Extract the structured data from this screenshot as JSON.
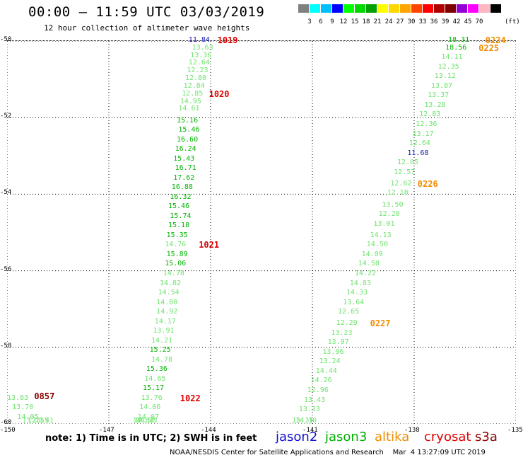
{
  "header": {
    "title": "00:00 – 11:59 UTC 03/03/2019",
    "subtitle": "12 hour collection of altimeter wave heights"
  },
  "colorbar": {
    "colors": [
      "#808080",
      "#00ffff",
      "#00bfff",
      "#0000ff",
      "#00ff00",
      "#00d800",
      "#00a000",
      "#ffff00",
      "#ffd700",
      "#ffa500",
      "#ff4500",
      "#ff0000",
      "#b00000",
      "#800000",
      "#9400d3",
      "#ff00ff",
      "#ffb6c1",
      "#000000"
    ],
    "labels": [
      "3",
      "6",
      "9",
      "12",
      "15",
      "18",
      "21",
      "24",
      "27",
      "30",
      "33",
      "36",
      "39",
      "42",
      "45",
      "70"
    ],
    "unit": "(ft)"
  },
  "axes": {
    "lat_labels": [
      "-50",
      "-52",
      "-54",
      "-56",
      "-58",
      "-60"
    ],
    "lon_labels": [
      "-150",
      "-147",
      "-144",
      "-141",
      "-138",
      "-135"
    ]
  },
  "chart_data": {
    "type": "scatter",
    "xlim": [
      -150,
      -135
    ],
    "ylim": [
      -60,
      -50
    ],
    "measurements": [
      {
        "x": -144.65,
        "y": -50.0,
        "text": "11.84",
        "color": "#1a1ab0"
      },
      {
        "x": -144.55,
        "y": -50.2,
        "text": "13.63",
        "color": "#6fe36f"
      },
      {
        "x": -144.6,
        "y": -50.4,
        "text": "13.36",
        "color": "#6fe36f"
      },
      {
        "x": -144.65,
        "y": -50.6,
        "text": "12.64",
        "color": "#6fe36f"
      },
      {
        "x": -144.7,
        "y": -50.8,
        "text": "12.23",
        "color": "#6fe36f"
      },
      {
        "x": -144.75,
        "y": -51.0,
        "text": "12.80",
        "color": "#6fe36f"
      },
      {
        "x": -144.8,
        "y": -51.2,
        "text": "12.84",
        "color": "#6fe36f"
      },
      {
        "x": -144.85,
        "y": -51.4,
        "text": "12.85",
        "color": "#6fe36f"
      },
      {
        "x": -144.9,
        "y": -51.6,
        "text": "14.95",
        "color": "#6fe36f"
      },
      {
        "x": -144.95,
        "y": -51.8,
        "text": "14.61",
        "color": "#6fe36f"
      },
      {
        "x": -145.0,
        "y": -52.1,
        "text": "15.16",
        "color": "#00b400"
      },
      {
        "x": -144.95,
        "y": -52.35,
        "text": "15.46",
        "color": "#00b400"
      },
      {
        "x": -145.0,
        "y": -52.6,
        "text": "16.60",
        "color": "#00b400"
      },
      {
        "x": -145.05,
        "y": -52.85,
        "text": "16.24",
        "color": "#00b400"
      },
      {
        "x": -145.1,
        "y": -53.1,
        "text": "15.43",
        "color": "#00b400"
      },
      {
        "x": -145.05,
        "y": -53.35,
        "text": "16.71",
        "color": "#00b400"
      },
      {
        "x": -145.1,
        "y": -53.6,
        "text": "17.62",
        "color": "#00b400"
      },
      {
        "x": -145.15,
        "y": -53.85,
        "text": "16.88",
        "color": "#00b400"
      },
      {
        "x": -145.2,
        "y": -54.1,
        "text": "16.32",
        "color": "#00b400"
      },
      {
        "x": -145.25,
        "y": -54.35,
        "text": "15.46",
        "color": "#00b400"
      },
      {
        "x": -145.2,
        "y": -54.6,
        "text": "15.74",
        "color": "#00b400"
      },
      {
        "x": -145.25,
        "y": -54.85,
        "text": "15.18",
        "color": "#00b400"
      },
      {
        "x": -145.3,
        "y": -55.1,
        "text": "15.35",
        "color": "#00b400"
      },
      {
        "x": -145.35,
        "y": -55.35,
        "text": "14.76",
        "color": "#6fe36f"
      },
      {
        "x": -145.3,
        "y": -55.6,
        "text": "15.89",
        "color": "#00b400"
      },
      {
        "x": -145.35,
        "y": -55.85,
        "text": "15.06",
        "color": "#00b400"
      },
      {
        "x": -145.4,
        "y": -56.1,
        "text": "14.78",
        "color": "#6fe36f"
      },
      {
        "x": -145.5,
        "y": -56.35,
        "text": "14.82",
        "color": "#6fe36f"
      },
      {
        "x": -145.55,
        "y": -56.6,
        "text": "14.54",
        "color": "#6fe36f"
      },
      {
        "x": -145.6,
        "y": -56.85,
        "text": "14.00",
        "color": "#6fe36f"
      },
      {
        "x": -145.6,
        "y": -57.1,
        "text": "14.92",
        "color": "#6fe36f"
      },
      {
        "x": -145.65,
        "y": -57.35,
        "text": "14.17",
        "color": "#6fe36f"
      },
      {
        "x": -145.7,
        "y": -57.6,
        "text": "13.91",
        "color": "#6fe36f"
      },
      {
        "x": -145.75,
        "y": -57.85,
        "text": "14.21",
        "color": "#6fe36f"
      },
      {
        "x": -145.8,
        "y": -58.1,
        "text": "15.25",
        "color": "#00b400"
      },
      {
        "x": -145.75,
        "y": -58.35,
        "text": "14.78",
        "color": "#6fe36f"
      },
      {
        "x": -145.9,
        "y": -58.6,
        "text": "15.36",
        "color": "#00b400"
      },
      {
        "x": -145.95,
        "y": -58.85,
        "text": "14.65",
        "color": "#6fe36f"
      },
      {
        "x": -146.0,
        "y": -59.1,
        "text": "15.17",
        "color": "#00b400"
      },
      {
        "x": -146.05,
        "y": -59.35,
        "text": "13.76",
        "color": "#6fe36f"
      },
      {
        "x": -146.1,
        "y": -59.6,
        "text": "14.06",
        "color": "#6fe36f"
      },
      {
        "x": -146.15,
        "y": -59.85,
        "text": "14.07",
        "color": "#6fe36f"
      },
      {
        "x": -146.2,
        "y": -60.1,
        "text": "14.33",
        "color": "#6fe36f"
      },
      {
        "x": -146.25,
        "y": -60.35,
        "text": "14.57",
        "color": "#6fe36f"
      },
      {
        "x": -146.3,
        "y": -60.6,
        "text": "14.67",
        "color": "#6fe36f"
      },
      {
        "x": -150.0,
        "y": -59.35,
        "text": "13.83",
        "color": "#6fe36f"
      },
      {
        "x": -149.85,
        "y": -59.6,
        "text": "13.70",
        "color": "#6fe36f"
      },
      {
        "x": -149.7,
        "y": -59.85,
        "text": "14.05",
        "color": "#6fe36f"
      },
      {
        "x": -149.55,
        "y": -60.1,
        "text": "13.71",
        "color": "#6fe36f"
      },
      {
        "x": -149.4,
        "y": -60.35,
        "text": "12.55",
        "color": "#6fe36f"
      },
      {
        "x": -149.25,
        "y": -60.6,
        "text": "13.41",
        "color": "#6fe36f"
      },
      {
        "x": -137.0,
        "y": -50.0,
        "text": "18.31",
        "color": "#00b400"
      },
      {
        "x": -137.08,
        "y": -50.2,
        "text": "18.56",
        "color": "#00b400"
      },
      {
        "x": -137.2,
        "y": -50.45,
        "text": "14.11",
        "color": "#6fe36f"
      },
      {
        "x": -137.3,
        "y": -50.7,
        "text": "12.35",
        "color": "#6fe36f"
      },
      {
        "x": -137.4,
        "y": -50.95,
        "text": "13.12",
        "color": "#6fe36f"
      },
      {
        "x": -137.5,
        "y": -51.2,
        "text": "13.87",
        "color": "#6fe36f"
      },
      {
        "x": -137.6,
        "y": -51.45,
        "text": "13.37",
        "color": "#6fe36f"
      },
      {
        "x": -137.7,
        "y": -51.7,
        "text": "13.28",
        "color": "#6fe36f"
      },
      {
        "x": -137.85,
        "y": -51.95,
        "text": "12.83",
        "color": "#6fe36f"
      },
      {
        "x": -137.95,
        "y": -52.2,
        "text": "12.36",
        "color": "#6fe36f"
      },
      {
        "x": -138.05,
        "y": -52.45,
        "text": "13.17",
        "color": "#6fe36f"
      },
      {
        "x": -138.15,
        "y": -52.7,
        "text": "12.64",
        "color": "#6fe36f"
      },
      {
        "x": -138.2,
        "y": -52.95,
        "text": "11.68",
        "color": "#1a1ab0"
      },
      {
        "x": -138.5,
        "y": -53.2,
        "text": "12.05",
        "color": "#6fe36f"
      },
      {
        "x": -138.6,
        "y": -53.45,
        "text": "12.57",
        "color": "#6fe36f"
      },
      {
        "x": -138.7,
        "y": -53.75,
        "text": "12.62",
        "color": "#6fe36f"
      },
      {
        "x": -138.8,
        "y": -54.0,
        "text": "12.18",
        "color": "#6fe36f"
      },
      {
        "x": -138.95,
        "y": -54.3,
        "text": "13.50",
        "color": "#6fe36f"
      },
      {
        "x": -139.05,
        "y": -54.55,
        "text": "12.20",
        "color": "#6fe36f"
      },
      {
        "x": -139.2,
        "y": -54.8,
        "text": "13.01",
        "color": "#6fe36f"
      },
      {
        "x": -139.3,
        "y": -55.1,
        "text": "14.13",
        "color": "#6fe36f"
      },
      {
        "x": -139.4,
        "y": -55.35,
        "text": "14.50",
        "color": "#6fe36f"
      },
      {
        "x": -139.55,
        "y": -55.6,
        "text": "14.09",
        "color": "#6fe36f"
      },
      {
        "x": -139.65,
        "y": -55.85,
        "text": "14.58",
        "color": "#6fe36f"
      },
      {
        "x": -139.75,
        "y": -56.1,
        "text": "14.22",
        "color": "#6fe36f"
      },
      {
        "x": -139.9,
        "y": -56.35,
        "text": "14.83",
        "color": "#6fe36f"
      },
      {
        "x": -140.0,
        "y": -56.6,
        "text": "14.33",
        "color": "#6fe36f"
      },
      {
        "x": -140.1,
        "y": -56.85,
        "text": "13.64",
        "color": "#6fe36f"
      },
      {
        "x": -140.25,
        "y": -57.1,
        "text": "12.65",
        "color": "#6fe36f"
      },
      {
        "x": -140.3,
        "y": -57.4,
        "text": "12.29",
        "color": "#6fe36f"
      },
      {
        "x": -140.45,
        "y": -57.65,
        "text": "13.23",
        "color": "#6fe36f"
      },
      {
        "x": -140.55,
        "y": -57.9,
        "text": "13.97",
        "color": "#6fe36f"
      },
      {
        "x": -140.7,
        "y": -58.15,
        "text": "13.96",
        "color": "#6fe36f"
      },
      {
        "x": -140.8,
        "y": -58.4,
        "text": "13.24",
        "color": "#6fe36f"
      },
      {
        "x": -140.9,
        "y": -58.65,
        "text": "14.44",
        "color": "#6fe36f"
      },
      {
        "x": -141.05,
        "y": -58.9,
        "text": "14.26",
        "color": "#6fe36f"
      },
      {
        "x": -141.15,
        "y": -59.15,
        "text": "12.96",
        "color": "#6fe36f"
      },
      {
        "x": -141.25,
        "y": -59.4,
        "text": "13.43",
        "color": "#6fe36f"
      },
      {
        "x": -141.4,
        "y": -59.65,
        "text": "13.33",
        "color": "#6fe36f"
      },
      {
        "x": -141.5,
        "y": -59.95,
        "text": "14.10",
        "color": "#6fe36f"
      },
      {
        "x": -141.6,
        "y": -60.2,
        "text": "13.31",
        "color": "#6fe36f"
      }
    ],
    "time_labels": [
      {
        "x": -143.8,
        "y": -50.0,
        "text": "1019",
        "color": "#e00000"
      },
      {
        "x": -144.05,
        "y": -51.4,
        "text": "1020",
        "color": "#e00000"
      },
      {
        "x": -144.35,
        "y": -55.35,
        "text": "1021",
        "color": "#e00000"
      },
      {
        "x": -144.9,
        "y": -59.35,
        "text": "1022",
        "color": "#e00000"
      },
      {
        "x": -149.2,
        "y": -59.3,
        "text": "0857",
        "color": "#8b0000"
      },
      {
        "x": -135.9,
        "y": -50.0,
        "text": "0224",
        "color": "#f08c00"
      },
      {
        "x": -136.1,
        "y": -50.2,
        "text": "0225",
        "color": "#f08c00"
      },
      {
        "x": -137.9,
        "y": -53.75,
        "text": "0226",
        "color": "#f08c00"
      },
      {
        "x": -139.3,
        "y": -57.4,
        "text": "0227",
        "color": "#f08c00"
      }
    ]
  },
  "footer": {
    "note": "note: 1) Time is in UTC; 2) SWH is in feet",
    "legend": [
      {
        "label": "jason2",
        "color": "#1010d0"
      },
      {
        "label": "jason3",
        "color": "#00b000"
      },
      {
        "label": "altika",
        "color": "#f08c00"
      },
      {
        "label": "cryosat",
        "color": "#e00000"
      },
      {
        "label": "s3a",
        "color": "#8b0000"
      }
    ],
    "credit": "NOAA/NESDIS Center for Satellite Applications and Research    Mar  4 13:27:09 UTC 2019"
  }
}
